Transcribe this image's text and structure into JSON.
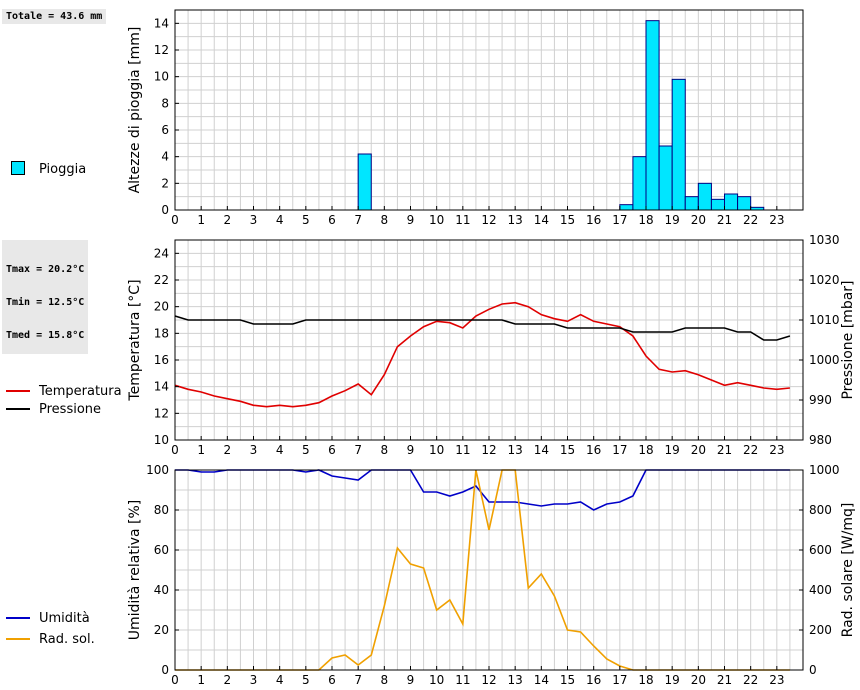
{
  "stats": {
    "rain_total": "Totale = 43.6 mm",
    "tmax": "Tmax = 20.2°C",
    "tmin": "Tmin = 12.5°C",
    "tmed": "Tmed = 15.8°C"
  },
  "colors": {
    "rain_fill": "#00e6ff",
    "temperature": "#e00000",
    "pressure": "#000000",
    "humidity": "#0000c8",
    "radiation": "#f0a000",
    "grid": "#d0d0d0"
  },
  "legends": {
    "rain": "Pioggia",
    "temperature": "Temperatura",
    "pressure": "Pressione",
    "humidity": "Umidità",
    "radiation": "Rad. sol."
  },
  "chart_data": [
    {
      "type": "bar",
      "ylabel": "Altezze di pioggia [mm]",
      "xlim": [
        0,
        24
      ],
      "ylim": [
        0,
        15
      ],
      "yticks": [
        0,
        2,
        4,
        6,
        8,
        10,
        12,
        14
      ],
      "xticks": [
        0,
        1,
        2,
        3,
        4,
        5,
        6,
        7,
        8,
        9,
        10,
        11,
        12,
        13,
        14,
        15,
        16,
        17,
        18,
        19,
        20,
        21,
        22,
        23
      ],
      "grid": true,
      "bar_width": 0.5,
      "series": [
        {
          "name": "Pioggia",
          "x": [
            7.0,
            17.0,
            17.5,
            18.0,
            18.5,
            19.0,
            19.5,
            20.0,
            20.5,
            21.0,
            21.5,
            22.0
          ],
          "values": [
            4.2,
            0.4,
            4.0,
            14.2,
            4.8,
            9.8,
            1.0,
            2.0,
            0.8,
            1.2,
            1.0,
            0.2
          ]
        }
      ]
    },
    {
      "type": "line",
      "ylabel": "Temperatura [°C]",
      "y2label": "Pressione [mbar]",
      "xlim": [
        0,
        24
      ],
      "ylim": [
        10,
        25
      ],
      "yticks": [
        10,
        12,
        14,
        16,
        18,
        20,
        22,
        24
      ],
      "y2lim": [
        980,
        1030
      ],
      "y2ticks": [
        980,
        990,
        1000,
        1010,
        1020,
        1030
      ],
      "xticks": [
        0,
        1,
        2,
        3,
        4,
        5,
        6,
        7,
        8,
        9,
        10,
        11,
        12,
        13,
        14,
        15,
        16,
        17,
        18,
        19,
        20,
        21,
        22,
        23
      ],
      "grid": true,
      "x": [
        0,
        0.5,
        1,
        1.5,
        2,
        2.5,
        3,
        3.5,
        4,
        4.5,
        5,
        5.5,
        6,
        6.5,
        7,
        7.5,
        8,
        8.5,
        9,
        9.5,
        10,
        10.5,
        11,
        11.5,
        12,
        12.5,
        13,
        13.5,
        14,
        14.5,
        15,
        15.5,
        16,
        16.5,
        17,
        17.5,
        18,
        18.5,
        19,
        19.5,
        20,
        20.5,
        21,
        21.5,
        22,
        22.5,
        23,
        23.5
      ],
      "series": [
        {
          "name": "Temperatura",
          "axis": "left",
          "values": [
            14.1,
            13.8,
            13.6,
            13.3,
            13.1,
            12.9,
            12.6,
            12.5,
            12.6,
            12.5,
            12.6,
            12.8,
            13.3,
            13.7,
            14.2,
            13.4,
            14.9,
            17.0,
            17.8,
            18.5,
            18.9,
            18.8,
            18.4,
            19.3,
            19.8,
            20.2,
            20.3,
            20.0,
            19.4,
            19.1,
            18.9,
            19.4,
            18.9,
            18.7,
            18.5,
            17.8,
            16.3,
            15.3,
            15.1,
            15.2,
            14.9,
            14.5,
            14.1,
            14.3,
            14.1,
            13.9,
            13.8,
            13.9
          ]
        },
        {
          "name": "Pressione",
          "axis": "right",
          "values": [
            1011,
            1010,
            1010,
            1010,
            1010,
            1010,
            1009,
            1009,
            1009,
            1009,
            1010,
            1010,
            1010,
            1010,
            1010,
            1010,
            1010,
            1010,
            1010,
            1010,
            1010,
            1010,
            1010,
            1010,
            1010,
            1010,
            1009,
            1009,
            1009,
            1009,
            1008,
            1008,
            1008,
            1008,
            1008,
            1007,
            1007,
            1007,
            1007,
            1008,
            1008,
            1008,
            1008,
            1007,
            1007,
            1005,
            1005,
            1006
          ]
        }
      ]
    },
    {
      "type": "line",
      "ylabel": "Umidità relativa [%]",
      "y2label": "Rad. solare [W/mq]",
      "xlim": [
        0,
        24
      ],
      "ylim": [
        0,
        100
      ],
      "yticks": [
        0,
        20,
        40,
        60,
        80,
        100
      ],
      "y2lim": [
        0,
        1000
      ],
      "y2ticks": [
        0,
        200,
        400,
        600,
        800,
        1000
      ],
      "xticks": [
        0,
        1,
        2,
        3,
        4,
        5,
        6,
        7,
        8,
        9,
        10,
        11,
        12,
        13,
        14,
        15,
        16,
        17,
        18,
        19,
        20,
        21,
        22,
        23
      ],
      "grid": true,
      "x": [
        0,
        0.5,
        1,
        1.5,
        2,
        2.5,
        3,
        3.5,
        4,
        4.5,
        5,
        5.5,
        6,
        6.5,
        7,
        7.5,
        8,
        8.5,
        9,
        9.5,
        10,
        10.5,
        11,
        11.5,
        12,
        12.5,
        13,
        13.5,
        14,
        14.5,
        15,
        15.5,
        16,
        16.5,
        17,
        17.5,
        18,
        18.5,
        19,
        19.5,
        20,
        20.5,
        21,
        21.5,
        22,
        22.5,
        23,
        23.5
      ],
      "series": [
        {
          "name": "Umidità",
          "axis": "left",
          "values": [
            100,
            100,
            99,
            99,
            100,
            100,
            100,
            100,
            100,
            100,
            99,
            100,
            97,
            96,
            95,
            100,
            100,
            100,
            100,
            89,
            89,
            87,
            89,
            92,
            84,
            84,
            84,
            83,
            82,
            83,
            83,
            84,
            80,
            83,
            84,
            87,
            100,
            100,
            100,
            100,
            100,
            100,
            100,
            100,
            100,
            100,
            100,
            100
          ]
        },
        {
          "name": "Rad. sol.",
          "axis": "right",
          "values": [
            0,
            0,
            0,
            0,
            0,
            0,
            0,
            0,
            0,
            0,
            0,
            0,
            60,
            75,
            25,
            75,
            320,
            610,
            530,
            510,
            300,
            350,
            230,
            1000,
            700,
            1050,
            1000,
            410,
            480,
            370,
            200,
            190,
            120,
            55,
            20,
            0,
            0,
            0,
            0,
            0,
            0,
            0,
            0,
            0,
            0,
            0,
            0,
            0
          ]
        }
      ]
    }
  ]
}
